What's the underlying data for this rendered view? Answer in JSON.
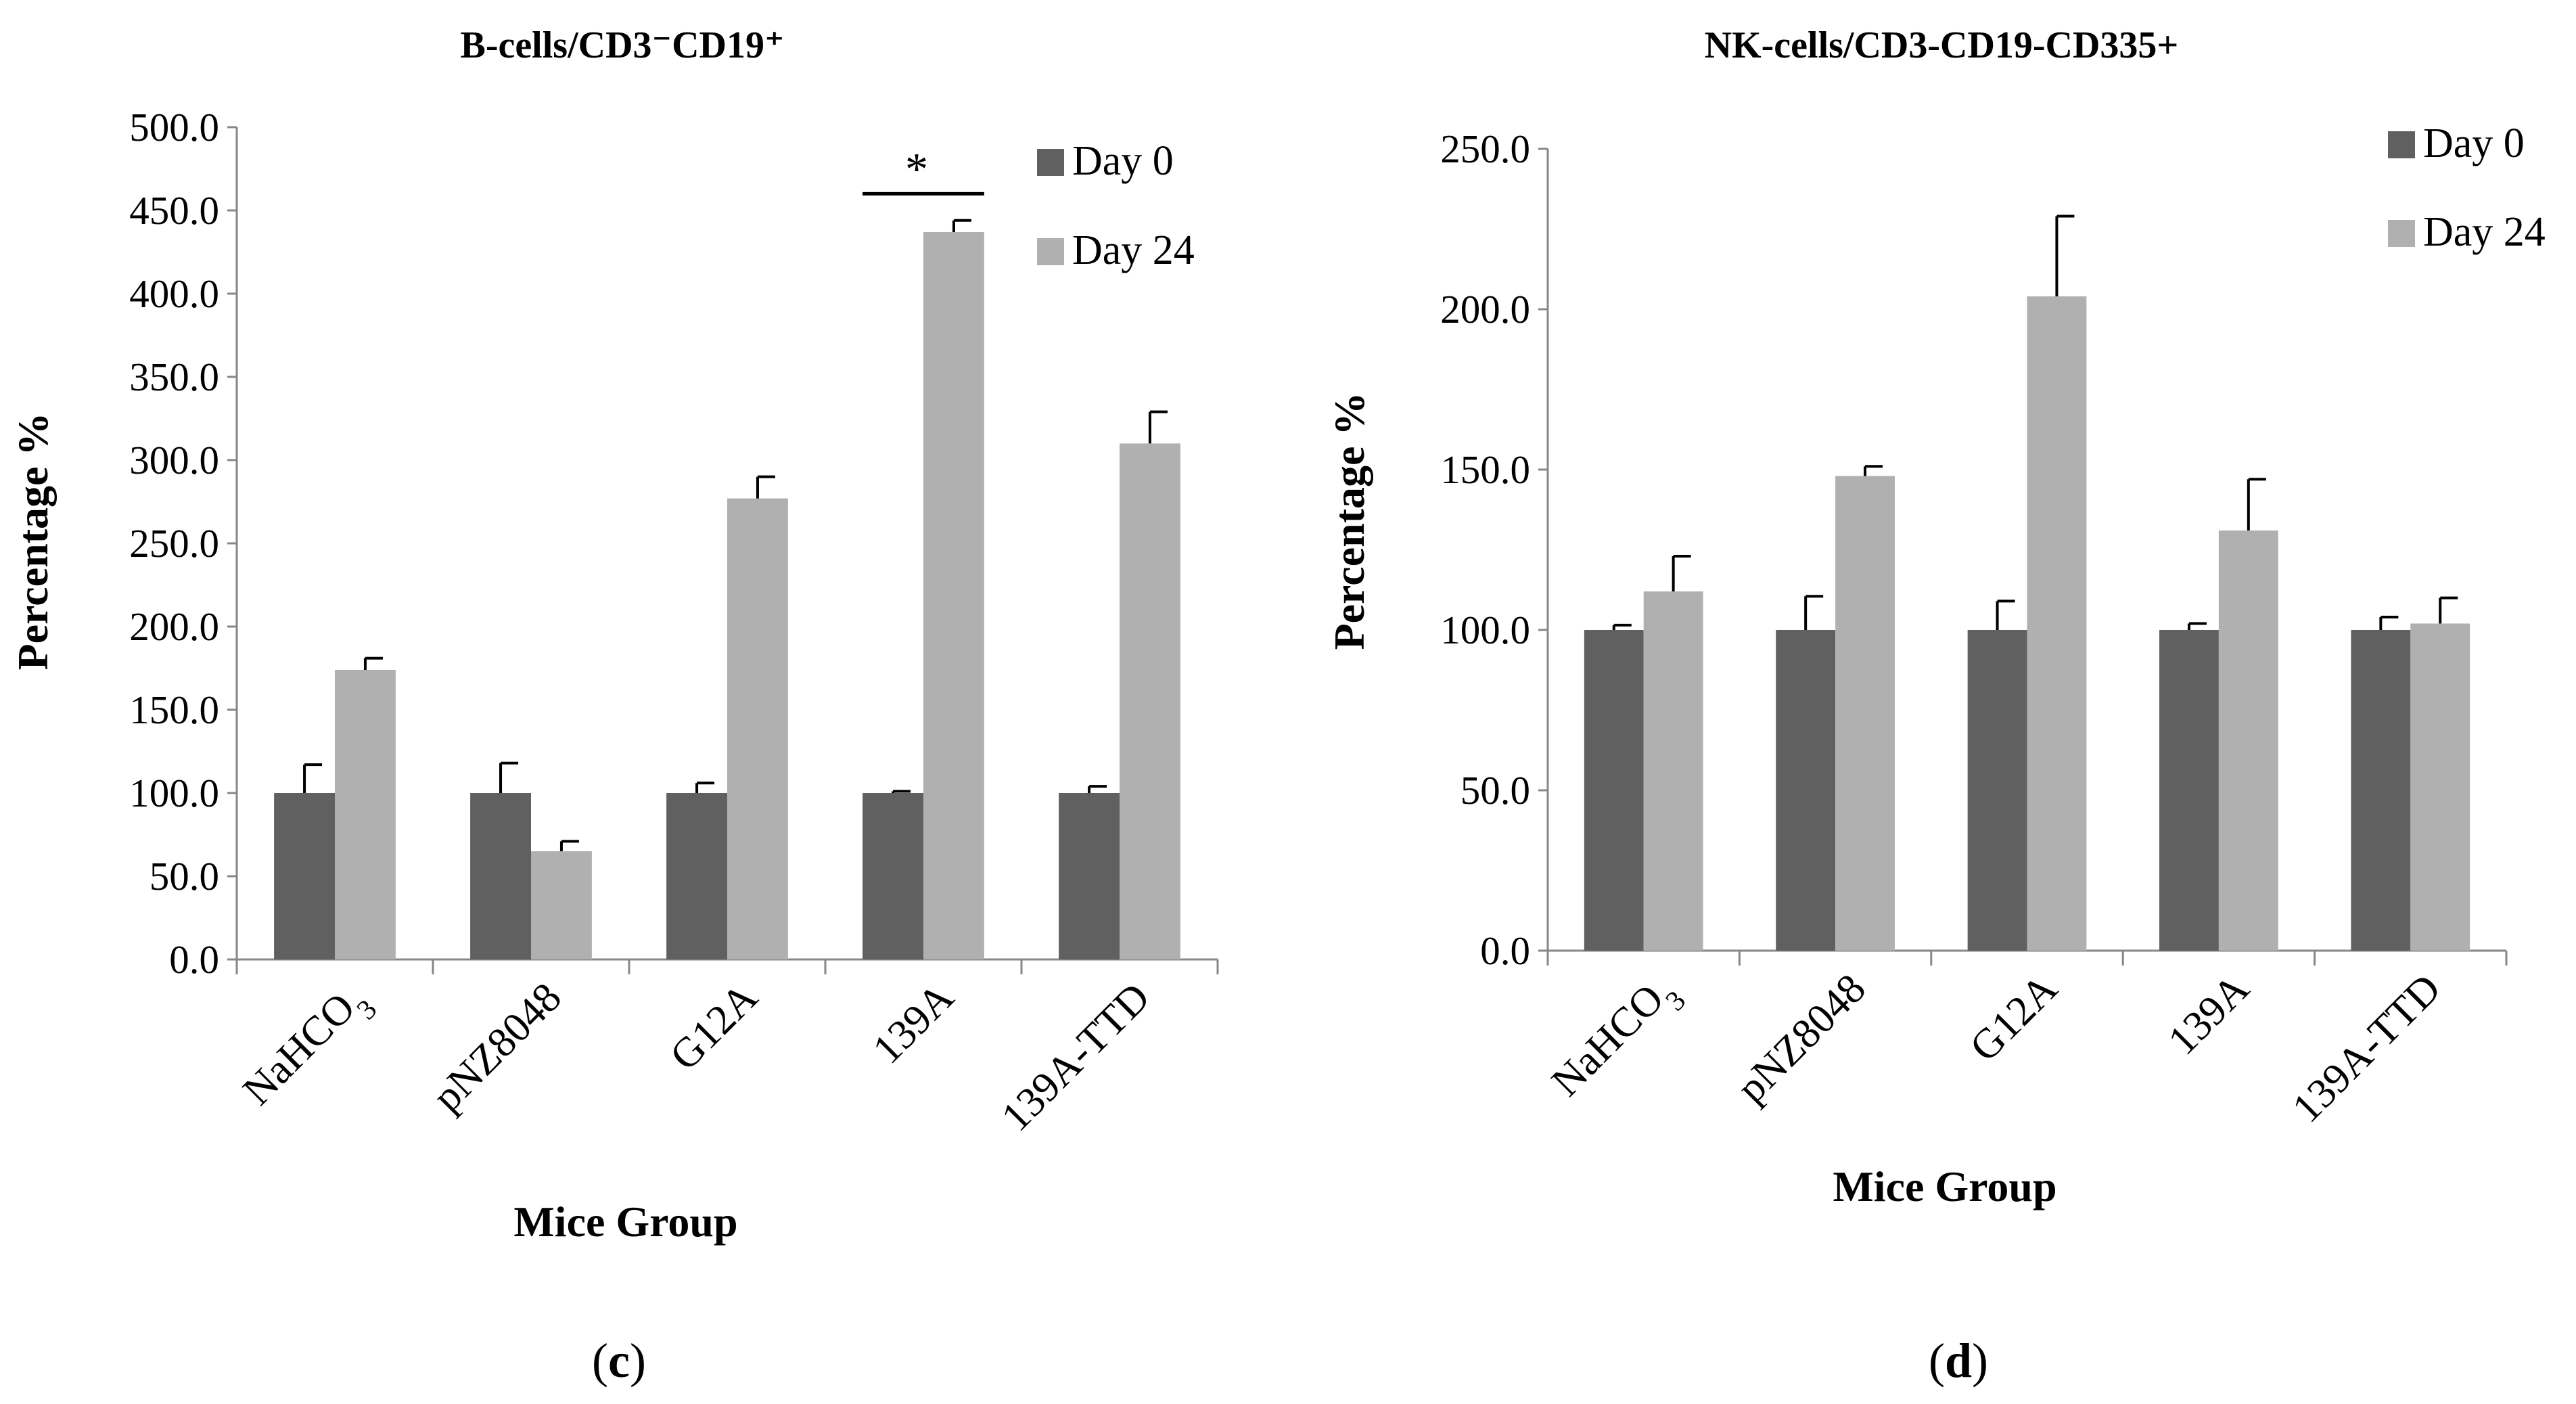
{
  "chart_data": [
    {
      "type": "bar",
      "panel_label": "c",
      "title": "B-cells/CD3⁻CD19⁺",
      "xlabel": "Mice Group",
      "ylabel": "Percentage %",
      "ylim": [
        0,
        500
      ],
      "ytick_step": 50,
      "ytick_labels": [
        "0.0",
        "50.0",
        "100.0",
        "150.0",
        "200.0",
        "250.0",
        "300.0",
        "350.0",
        "400.0",
        "450.0",
        "500.0"
      ],
      "categories": [
        "NaHCO₃",
        "pNZ8048",
        "G12A",
        "139A",
        "139A-TTD"
      ],
      "series": [
        {
          "name": "Day 0",
          "color": "#606060",
          "values": [
            100.0,
            100.0,
            100.0,
            100.0,
            100.0
          ],
          "errors": [
            17,
            18,
            6,
            1,
            4
          ]
        },
        {
          "name": "Day 24",
          "color": "#b0b0b0",
          "values": [
            174,
            65,
            277,
            437,
            310
          ],
          "errors": [
            7,
            6,
            13,
            7,
            19
          ]
        }
      ],
      "legend_position": "top-right",
      "annotations": [
        {
          "text": "*",
          "category_index": 3,
          "y": 460
        }
      ]
    },
    {
      "type": "bar",
      "panel_label": "d",
      "title": "NK-cells/CD3-CD19-CD335+",
      "xlabel": "Mice Group",
      "ylabel": "Percentage %",
      "ylim": [
        0,
        250
      ],
      "ytick_step": 50,
      "ytick_labels": [
        "0.0",
        "50.0",
        "100.0",
        "150.0",
        "200.0",
        "250.0"
      ],
      "categories": [
        "NaHCO₃",
        "pNZ8048",
        "G12A",
        "139A",
        "139A-TTD"
      ],
      "series": [
        {
          "name": "Day 0",
          "color": "#606060",
          "values": [
            100.0,
            100.0,
            100.0,
            100.0,
            100.0
          ],
          "errors": [
            1.5,
            10.5,
            9,
            2,
            4
          ]
        },
        {
          "name": "Day 24",
          "color": "#b0b0b0",
          "values": [
            112,
            148,
            204,
            131,
            102
          ],
          "errors": [
            11,
            3,
            25,
            16,
            8
          ]
        }
      ],
      "legend_position": "top-right",
      "annotations": []
    }
  ]
}
